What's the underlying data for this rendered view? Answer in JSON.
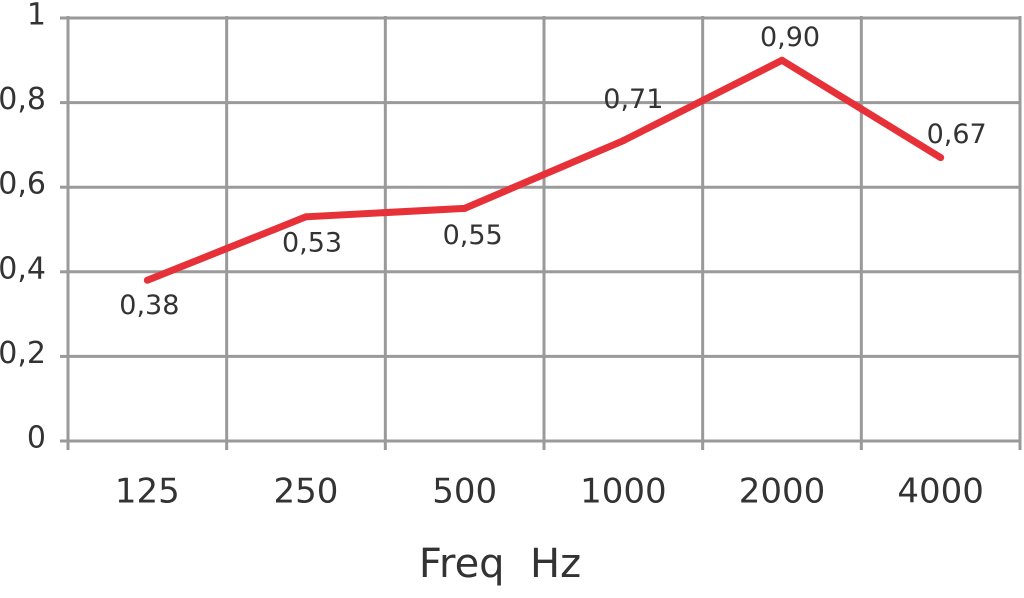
{
  "chart_data": {
    "type": "line",
    "x_label": "Freq  Hz",
    "categories": [
      "125",
      "250",
      "500",
      "1000",
      "2000",
      "4000"
    ],
    "series": [
      {
        "color": "#e63138",
        "values": [
          0.38,
          0.53,
          0.55,
          0.71,
          0.9,
          0.67
        ],
        "value_labels": [
          "0,38",
          "0,53",
          "0,55",
          "0,71",
          "0,90",
          "0,67"
        ]
      }
    ],
    "ylim": [
      0,
      1
    ],
    "yticks": [
      0,
      {
        "value": 0.2,
        "label": "0,2"
      },
      {
        "value": 0.4,
        "label": "0,4"
      },
      {
        "value": 0.6,
        "label": "0,6"
      },
      {
        "value": 0.8,
        "label": "0,8"
      },
      1
    ],
    "grid": true
  }
}
